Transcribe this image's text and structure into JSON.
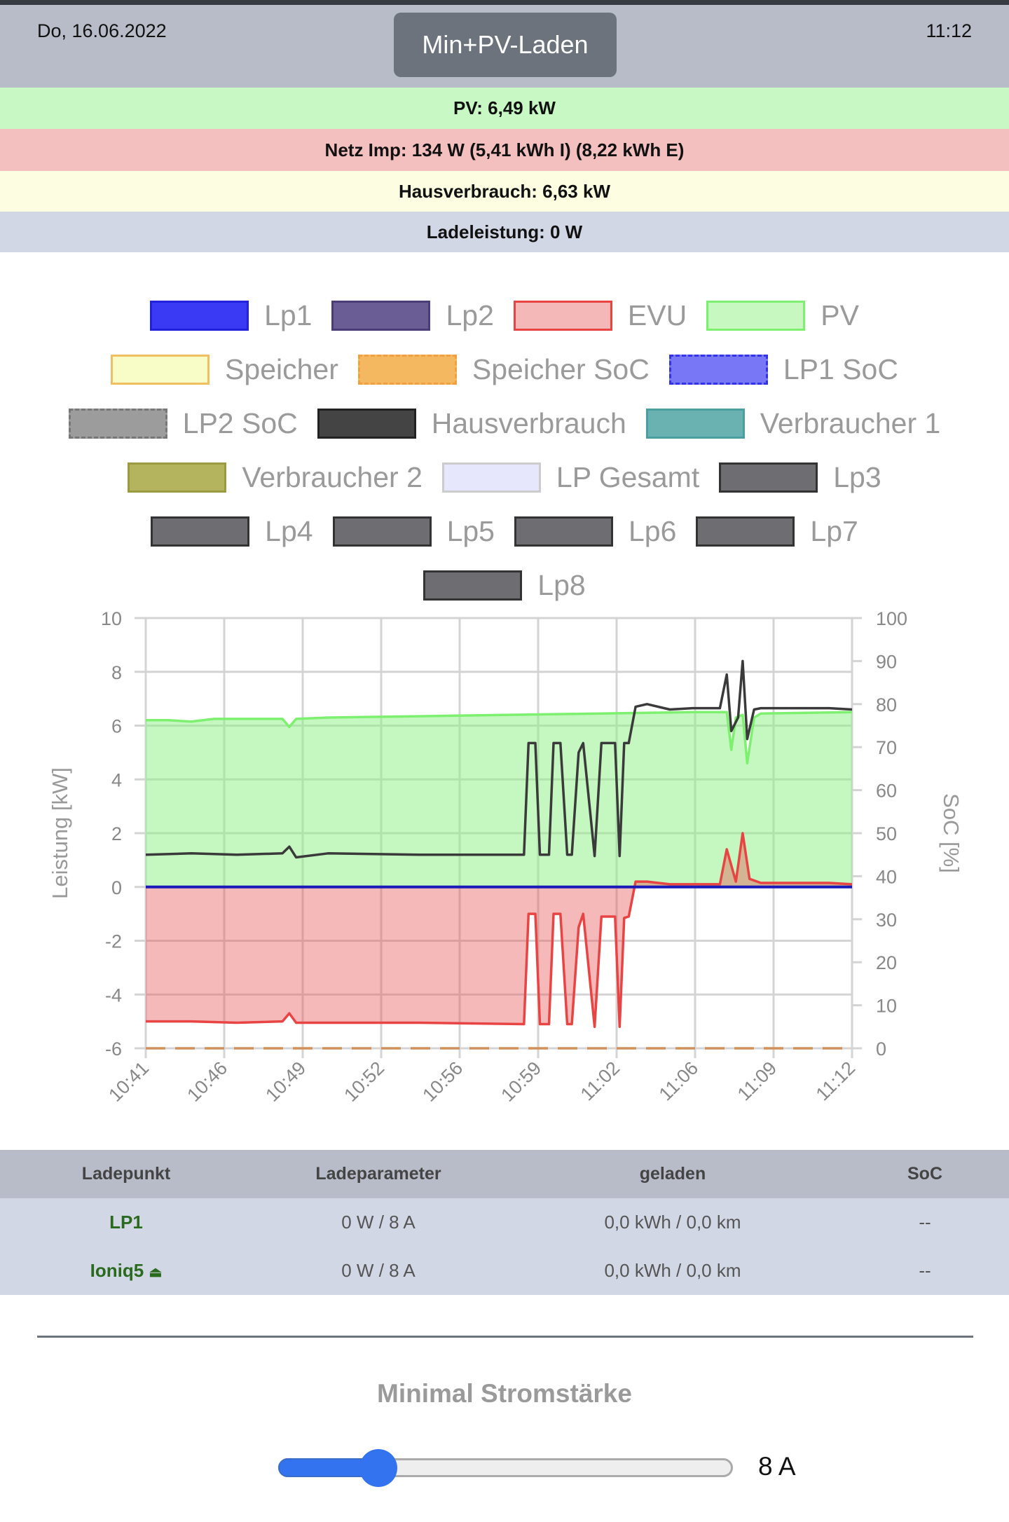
{
  "header": {
    "date": "Do, 16.06.2022",
    "time": "11:12",
    "mode_button": "Min+PV-Laden"
  },
  "bands": [
    {
      "text": "PV: 6,49 kW",
      "color": "#c8f8c4"
    },
    {
      "text": "Netz Imp: 134 W (5,41 kWh I) (8,22 kWh E)",
      "color": "#f4c0bf"
    },
    {
      "text": "Hausverbrauch: 6,63 kW",
      "color": "#fdfde2"
    },
    {
      "text": "Ladeleistung: 0 W",
      "color": "#d2d7e5"
    }
  ],
  "legend": [
    {
      "label": "Lp1",
      "fill": "#3a3af4",
      "border": "#2222dd",
      "dash": false
    },
    {
      "label": "Lp2",
      "fill": "#6a5d96",
      "border": "#4a3d78",
      "dash": false
    },
    {
      "label": "EVU",
      "fill": "#f4b8b8",
      "border": "#e84444",
      "dash": false
    },
    {
      "label": "PV",
      "fill": "#c6f8c0",
      "border": "#7ef070",
      "dash": false
    },
    {
      "label": "Speicher",
      "fill": "#f8fcc6",
      "border": "#f0c060",
      "dash": false
    },
    {
      "label": "Speicher SoC",
      "fill": "#f4b860",
      "border": "#f0a040",
      "dash": true
    },
    {
      "label": "LP1 SoC",
      "fill": "#7878f6",
      "border": "#3333ee",
      "dash": true
    },
    {
      "label": "LP2 SoC",
      "fill": "#9c9c9c",
      "border": "#777777",
      "dash": true
    },
    {
      "label": "Hausverbrauch",
      "fill": "#444444",
      "border": "#222222",
      "dash": false
    },
    {
      "label": "Verbraucher 1",
      "fill": "#6ab2b2",
      "border": "#4aa0a0",
      "dash": false
    },
    {
      "label": "Verbraucher 2",
      "fill": "#b4b45e",
      "border": "#9a9a40",
      "dash": false
    },
    {
      "label": "LP Gesamt",
      "fill": "#e6e6fc",
      "border": "#cccccc",
      "dash": false
    },
    {
      "label": "Lp3",
      "fill": "#6e6e72",
      "border": "#333333",
      "dash": false
    },
    {
      "label": "Lp4",
      "fill": "#6e6e72",
      "border": "#333333",
      "dash": false
    },
    {
      "label": "Lp5",
      "fill": "#6e6e72",
      "border": "#333333",
      "dash": false
    },
    {
      "label": "Lp6",
      "fill": "#6e6e72",
      "border": "#333333",
      "dash": false
    },
    {
      "label": "Lp7",
      "fill": "#6e6e72",
      "border": "#333333",
      "dash": false
    },
    {
      "label": "Lp8",
      "fill": "#6e6e72",
      "border": "#333333",
      "dash": false
    }
  ],
  "chart_data": {
    "type": "line",
    "ylabel": "Leistung [kW]",
    "y2label": "SoC [%]",
    "ylim": [
      -6,
      10
    ],
    "y2lim": [
      0,
      100
    ],
    "yticks": [
      "10",
      "8",
      "6",
      "4",
      "2",
      "0",
      "-2",
      "-4",
      "-6"
    ],
    "y2ticks": [
      "100",
      "90",
      "80",
      "70",
      "60",
      "50",
      "40",
      "30",
      "20",
      "10",
      "0"
    ],
    "xticks": [
      "10:41",
      "10:46",
      "10:49",
      "10:52",
      "10:56",
      "10:59",
      "11:02",
      "11:06",
      "11:09",
      "11:12"
    ],
    "xlim_minutes": [
      0,
      31
    ],
    "series": [
      {
        "name": "PV",
        "color": "#7ef070",
        "fill": "rgba(140,240,130,0.5)",
        "x": [
          0,
          1,
          2,
          3,
          6,
          6.3,
          6.6,
          8,
          12,
          16,
          20,
          24,
          25.5,
          25.7,
          25.9,
          26.2,
          26.4,
          26.7,
          27,
          31
        ],
        "y": [
          6.2,
          6.2,
          6.15,
          6.25,
          6.25,
          5.95,
          6.25,
          6.3,
          6.35,
          6.4,
          6.45,
          6.5,
          6.5,
          5.1,
          6.3,
          6.4,
          4.6,
          6.3,
          6.45,
          6.5
        ]
      },
      {
        "name": "EVU",
        "color": "#e84444",
        "fill": "rgba(232,80,80,0.4)",
        "x": [
          0,
          2,
          4,
          6,
          6.3,
          6.6,
          8,
          12,
          16.6,
          16.8,
          17.1,
          17.3,
          17.7,
          17.9,
          18.2,
          18.5,
          18.7,
          19.0,
          19.2,
          19.7,
          20.0,
          20.6,
          20.8,
          21.0,
          21.2,
          21.5,
          22,
          23,
          24,
          25.2,
          25.5,
          25.9,
          26.2,
          26.5,
          27,
          30,
          31
        ],
        "y": [
          -5,
          -5,
          -5.05,
          -5,
          -4.7,
          -5.05,
          -5.05,
          -5.05,
          -5.1,
          -1.0,
          -1.0,
          -5.1,
          -5.1,
          -1.0,
          -1.0,
          -5.1,
          -5.1,
          -1.5,
          -1.0,
          -5.2,
          -1.1,
          -1.1,
          -5.2,
          -1.15,
          -1.1,
          0.2,
          0.2,
          0.1,
          0.1,
          0.1,
          1.4,
          0.2,
          2.0,
          0.3,
          0.15,
          0.15,
          0.1
        ]
      },
      {
        "name": "Hausverbrauch",
        "color": "#3a3a3a",
        "fill": "none",
        "x": [
          0,
          2,
          4,
          6,
          6.3,
          6.6,
          8,
          12,
          16.6,
          16.8,
          17.1,
          17.3,
          17.7,
          17.9,
          18.2,
          18.5,
          18.7,
          19.0,
          19.2,
          19.7,
          20.0,
          20.6,
          20.8,
          21.0,
          21.2,
          21.5,
          22,
          23,
          24,
          25.2,
          25.5,
          25.7,
          26.0,
          26.2,
          26.4,
          26.7,
          27,
          30,
          31
        ],
        "y": [
          1.2,
          1.25,
          1.2,
          1.25,
          1.5,
          1.1,
          1.25,
          1.2,
          1.2,
          5.35,
          5.35,
          1.2,
          1.2,
          5.35,
          5.35,
          1.2,
          1.2,
          5.0,
          5.35,
          1.15,
          5.35,
          5.35,
          1.15,
          5.35,
          5.35,
          6.7,
          6.8,
          6.6,
          6.65,
          6.65,
          7.9,
          5.8,
          6.3,
          8.4,
          5.5,
          6.6,
          6.65,
          6.65,
          6.6
        ]
      },
      {
        "name": "Lp1",
        "color": "#1a1ab8",
        "fill": "none",
        "x": [
          0,
          31
        ],
        "y": [
          0,
          0
        ]
      },
      {
        "name": "Speicher SoC",
        "color": "#d0905a",
        "fill": "none",
        "dash": true,
        "axis": "y2",
        "x": [
          0,
          31
        ],
        "y": [
          0,
          0
        ]
      }
    ]
  },
  "table": {
    "headers": [
      "Ladepunkt",
      "Ladeparameter",
      "geladen",
      "SoC"
    ],
    "rows": [
      {
        "name": "LP1",
        "param": "0 W / 8 A",
        "charged": "0,0 kWh / 0,0 km",
        "soc": "--"
      },
      {
        "name": "Ioniq5",
        "plug_icon": "plug-icon",
        "param": "0 W / 8 A",
        "charged": "0,0 kWh / 0,0 km",
        "soc": "--"
      }
    ]
  },
  "slider": {
    "title": "Minimal Stromstärke",
    "value_label": "8 A",
    "fraction": 0.22
  }
}
